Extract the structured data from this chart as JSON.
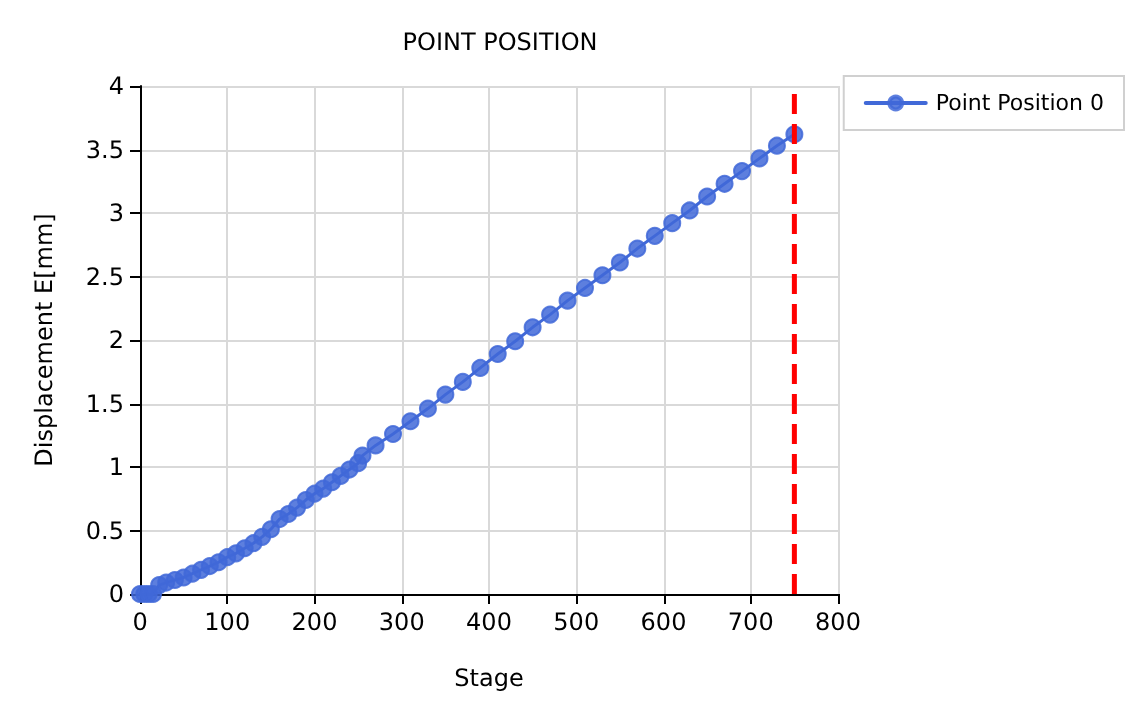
{
  "chart_data": {
    "type": "line",
    "title": "POINT POSITION",
    "xlabel": "Stage",
    "ylabel": "Displacement E[mm]",
    "xlim": [
      0,
      800
    ],
    "xticks": [
      0,
      100,
      200,
      300,
      400,
      500,
      600,
      700,
      800
    ],
    "ylim": [
      0,
      4
    ],
    "yticks": [
      0,
      0.5,
      1,
      1.5,
      2,
      2.5,
      3,
      3.5,
      4
    ],
    "grid": true,
    "legend": "top right",
    "marker": "circle",
    "line_style": "solid",
    "ref_lines": [
      {
        "axis": "x",
        "value": 750,
        "color": "#ff0000",
        "line_style": "dashed"
      }
    ],
    "series": [
      {
        "name": "Point Position 0",
        "color": "#4169d8",
        "x": [
          0,
          5,
          10,
          15,
          22,
          30,
          40,
          50,
          60,
          70,
          80,
          90,
          100,
          110,
          120,
          130,
          140,
          150,
          160,
          170,
          180,
          190,
          200,
          210,
          220,
          230,
          240,
          250,
          255,
          270,
          290,
          310,
          330,
          350,
          370,
          390,
          410,
          430,
          450,
          470,
          490,
          510,
          530,
          550,
          570,
          590,
          610,
          630,
          650,
          670,
          690,
          710,
          730,
          750
        ],
        "values": [
          0,
          0,
          0,
          0,
          0.07,
          0.09,
          0.11,
          0.13,
          0.16,
          0.19,
          0.22,
          0.25,
          0.29,
          0.32,
          0.36,
          0.4,
          0.45,
          0.51,
          0.59,
          0.63,
          0.68,
          0.74,
          0.79,
          0.83,
          0.88,
          0.93,
          0.98,
          1.03,
          1.09,
          1.17,
          1.26,
          1.36,
          1.46,
          1.57,
          1.67,
          1.78,
          1.89,
          1.99,
          2.1,
          2.2,
          2.31,
          2.41,
          2.51,
          2.61,
          2.72,
          2.82,
          2.92,
          3.02,
          3.13,
          3.23,
          3.33,
          3.43,
          3.53,
          3.62
        ]
      }
    ]
  }
}
